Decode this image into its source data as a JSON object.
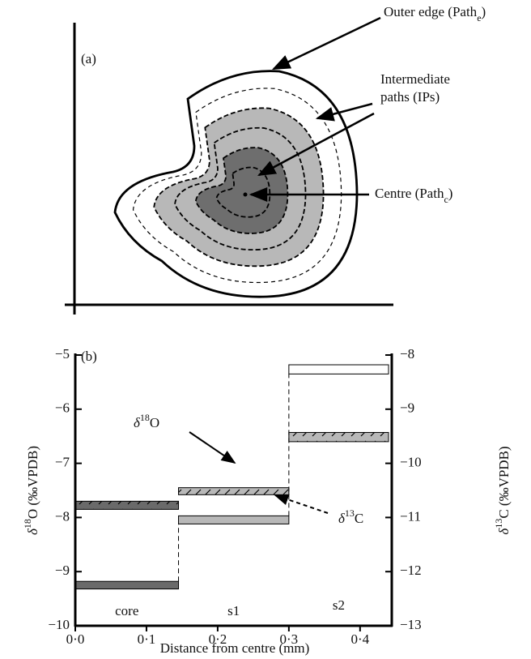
{
  "diagram": {
    "label": "(a)",
    "annotations": [
      {
        "text": "Outer edge (Path",
        "sub": "e",
        "suffix": ")"
      },
      {
        "lines": [
          "Intermediate",
          "paths (IPs)"
        ]
      },
      {
        "text": "Centre (Path",
        "sub": "c",
        "suffix": ")"
      }
    ]
  },
  "chart_data": {
    "type": "range-bar",
    "label": "(b)",
    "xlabel": "Distance from centre (mm)",
    "ylabel": {
      "prefix": "δ",
      "sup": "18",
      "suffix": "O (‰VPDB)"
    },
    "y2label": {
      "prefix": "δ",
      "sup": "13",
      "suffix": "C (‰VPDB)"
    },
    "categories": [
      "core",
      "s1",
      "s2"
    ],
    "zone_edges": [
      0,
      0.145,
      0.3,
      0.44
    ],
    "xlim": [
      0,
      0.44
    ],
    "xticks": [
      {
        "value": 0,
        "label": "0·0"
      },
      {
        "value": 0.1,
        "label": "0·1"
      },
      {
        "value": 0.2,
        "label": "0·2"
      },
      {
        "value": 0.3,
        "label": "0·3"
      },
      {
        "value": 0.4,
        "label": "0·4"
      }
    ],
    "ylim": [
      -10,
      -5
    ],
    "yticks": [
      {
        "value": -10,
        "label": "−10"
      },
      {
        "value": -9,
        "label": "−9"
      },
      {
        "value": -8,
        "label": "−8"
      },
      {
        "value": -7,
        "label": "−7"
      },
      {
        "value": -6,
        "label": "−6"
      },
      {
        "value": -5,
        "label": "−5"
      }
    ],
    "y2lim": [
      -13,
      -8
    ],
    "y2ticks": [
      {
        "value": -13,
        "label": "−13"
      },
      {
        "value": -12,
        "label": "−12"
      },
      {
        "value": -11,
        "label": "−11"
      },
      {
        "value": -10,
        "label": "−10"
      },
      {
        "value": -9,
        "label": "−9"
      },
      {
        "value": -8,
        "label": "−8"
      }
    ],
    "series": [
      {
        "label": {
          "prefix": "δ",
          "sup": "18",
          "suffix": "O"
        },
        "hatched": true,
        "low": [
          -7.85,
          -7.58,
          -6.6
        ],
        "high": [
          -7.7,
          -7.45,
          -6.43
        ],
        "colors": [
          "#6a6a6a",
          "#b8b8b8",
          "#b8b8b8"
        ]
      },
      {
        "label": {
          "prefix": "δ",
          "sup": "13",
          "suffix": "C"
        },
        "axis": "y2",
        "hatched": false,
        "low": [
          -12.32,
          -11.12,
          -8.35
        ],
        "high": [
          -12.18,
          -10.97,
          -8.18
        ],
        "colors": [
          "#6a6a6a",
          "#b8b8b8",
          "#ffffff"
        ]
      }
    ]
  }
}
